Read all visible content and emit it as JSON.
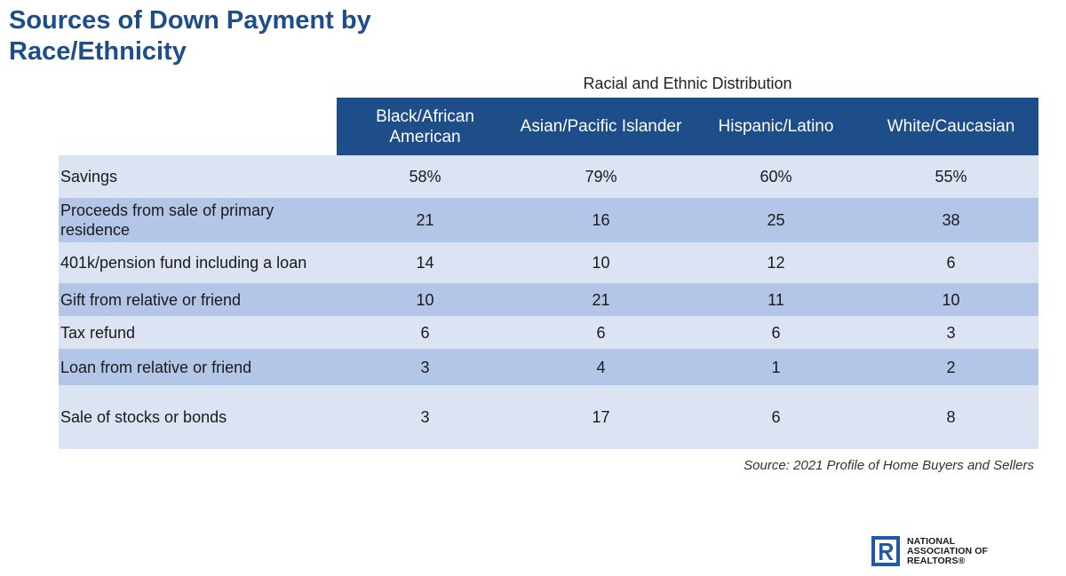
{
  "title": "Sources of Down Payment by Race/Ethnicity",
  "distribution_label": "Racial and Ethnic Distribution",
  "source": "Source: 2021 Profile of Home Buyers and Sellers",
  "logo": {
    "icon": "realtor-r-logo-icon",
    "line1": "NATIONAL",
    "line2": "ASSOCIATION OF",
    "line3": "REALTORS®"
  },
  "colors": {
    "title": "#1d4e89",
    "header_bg": "#1d4e89",
    "row_light": "#dce3f3",
    "row_dark": "#b4c6e7"
  },
  "chart_data": {
    "type": "table",
    "title": "Sources of Down Payment by Race/Ethnicity",
    "column_group": "Racial and Ethnic Distribution",
    "columns": [
      "Black/African American",
      "Asian/Pacific Islander",
      "Hispanic/Latino",
      "White/Caucasian"
    ],
    "rows": [
      {
        "label": "Savings",
        "values": [
          "58%",
          "79%",
          "60%",
          "55%"
        ]
      },
      {
        "label": "Proceeds from sale of primary residence",
        "values": [
          "21",
          "16",
          "25",
          "38"
        ]
      },
      {
        "label": "401k/pension fund including a loan",
        "values": [
          "14",
          "10",
          "12",
          "6"
        ]
      },
      {
        "label": "Gift from relative or friend",
        "values": [
          "10",
          "21",
          "11",
          "10"
        ]
      },
      {
        "label": "Tax refund",
        "values": [
          "6",
          "6",
          "6",
          "3"
        ]
      },
      {
        "label": "Loan from relative or friend",
        "values": [
          "3",
          "4",
          "1",
          "2"
        ]
      },
      {
        "label": "Sale of stocks or bonds",
        "values": [
          "3",
          "17",
          "6",
          "8"
        ]
      }
    ]
  }
}
